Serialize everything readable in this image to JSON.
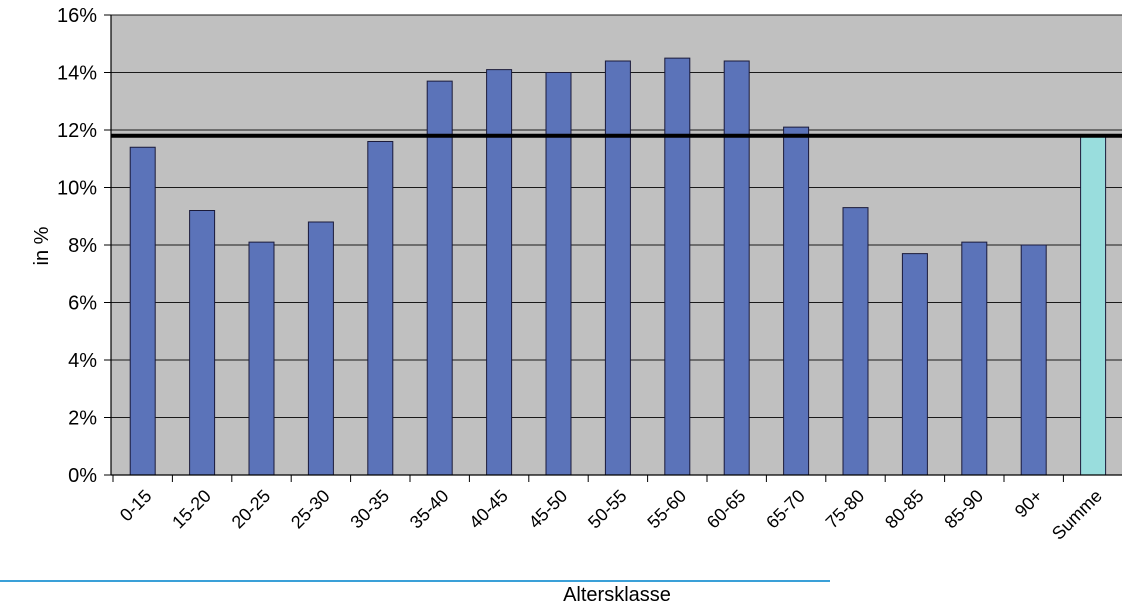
{
  "chart_data": {
    "type": "bar",
    "xlabel": "Altersklasse",
    "ylabel": "in %",
    "ylim": [
      0,
      16
    ],
    "y_ticks": [
      "0%",
      "2%",
      "4%",
      "6%",
      "8%",
      "10%",
      "12%",
      "14%",
      "16%"
    ],
    "categories": [
      "0-15",
      "15-20",
      "20-25",
      "25-30",
      "30-35",
      "35-40",
      "40-45",
      "45-50",
      "50-55",
      "55-60",
      "60-65",
      "65-70",
      "75-80",
      "80-85",
      "85-90",
      "90+",
      "Summe"
    ],
    "values": [
      11.4,
      9.2,
      8.1,
      8.8,
      11.6,
      13.7,
      14.1,
      14.0,
      14.4,
      14.5,
      14.4,
      12.1,
      9.3,
      7.7,
      8.1,
      8.0,
      11.8
    ],
    "reference_line": 11.8,
    "grid": true,
    "colors": {
      "plot_background": "#c0c0c0",
      "bar": "#5b73b9",
      "summary_bar": "#99dddd",
      "bar_edge": "#1a1a3a",
      "gridline": "#1a1a1a",
      "reference_line": "#000000",
      "bottom_rule": "#3aa0d8"
    }
  }
}
